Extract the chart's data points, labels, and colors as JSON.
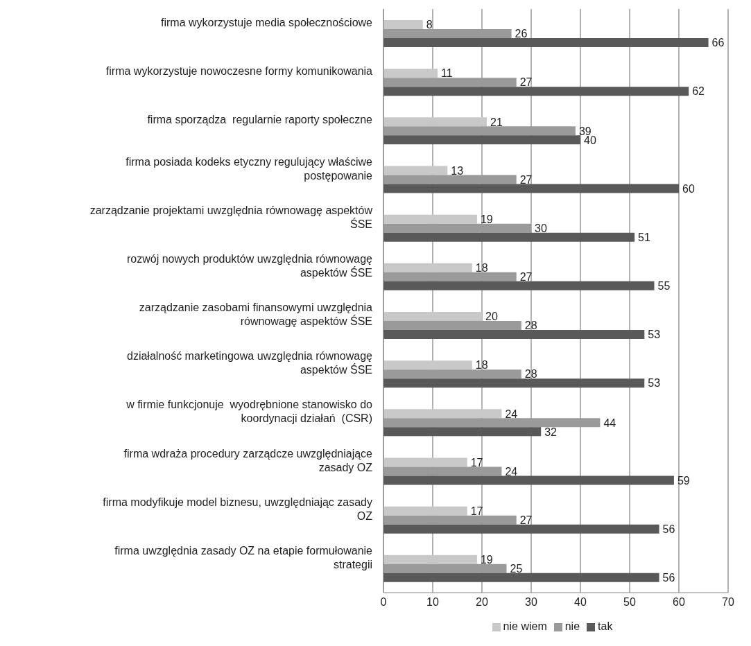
{
  "chart_data": {
    "type": "bar",
    "orientation": "horizontal",
    "categories": [
      "firma wykorzystuje media społecznościowe",
      "firma wykorzystuje nowoczesne formy komunikowania",
      "firma sporządza  regularnie raporty społeczne",
      "firma posiada kodeks etyczny regulujący właściwe postępowanie",
      "zarządzanie projektami uwzględnia równowagę aspektów ŚSE",
      "rozwój nowych produktów uwzględnia równowagę aspektów ŚSE",
      "zarządzanie zasobami finansowymi uwzględnia równowagę aspektów ŚSE",
      "działalność marketingowa uwzględnia równowagę aspektów ŚSE",
      "w firmie funkcjonuje  wyodrębnione stanowisko do koordynacji działań  (CSR)",
      "firma wdraża procedury zarządcze uwzględniające zasady OZ",
      "firma modyfikuje model biznesu, uwzględniając zasady OZ",
      "firma uwzględnia zasady OZ na etapie formułowanie strategii"
    ],
    "series": [
      {
        "name": "nie wiem",
        "color": "#c8c8c8",
        "values": [
          8,
          11,
          21,
          13,
          19,
          18,
          20,
          18,
          24,
          17,
          17,
          19
        ]
      },
      {
        "name": "nie",
        "color": "#9a9a9a",
        "values": [
          26,
          27,
          39,
          27,
          30,
          27,
          28,
          28,
          44,
          24,
          27,
          25
        ]
      },
      {
        "name": "tak",
        "color": "#595959",
        "values": [
          66,
          62,
          40,
          60,
          51,
          55,
          53,
          53,
          32,
          59,
          56,
          56
        ]
      }
    ],
    "xlim": [
      0,
      70
    ],
    "xticks": [
      0,
      10,
      20,
      30,
      40,
      50,
      60,
      70
    ],
    "grid": "x",
    "legend": "bottom",
    "data_labels": true
  }
}
